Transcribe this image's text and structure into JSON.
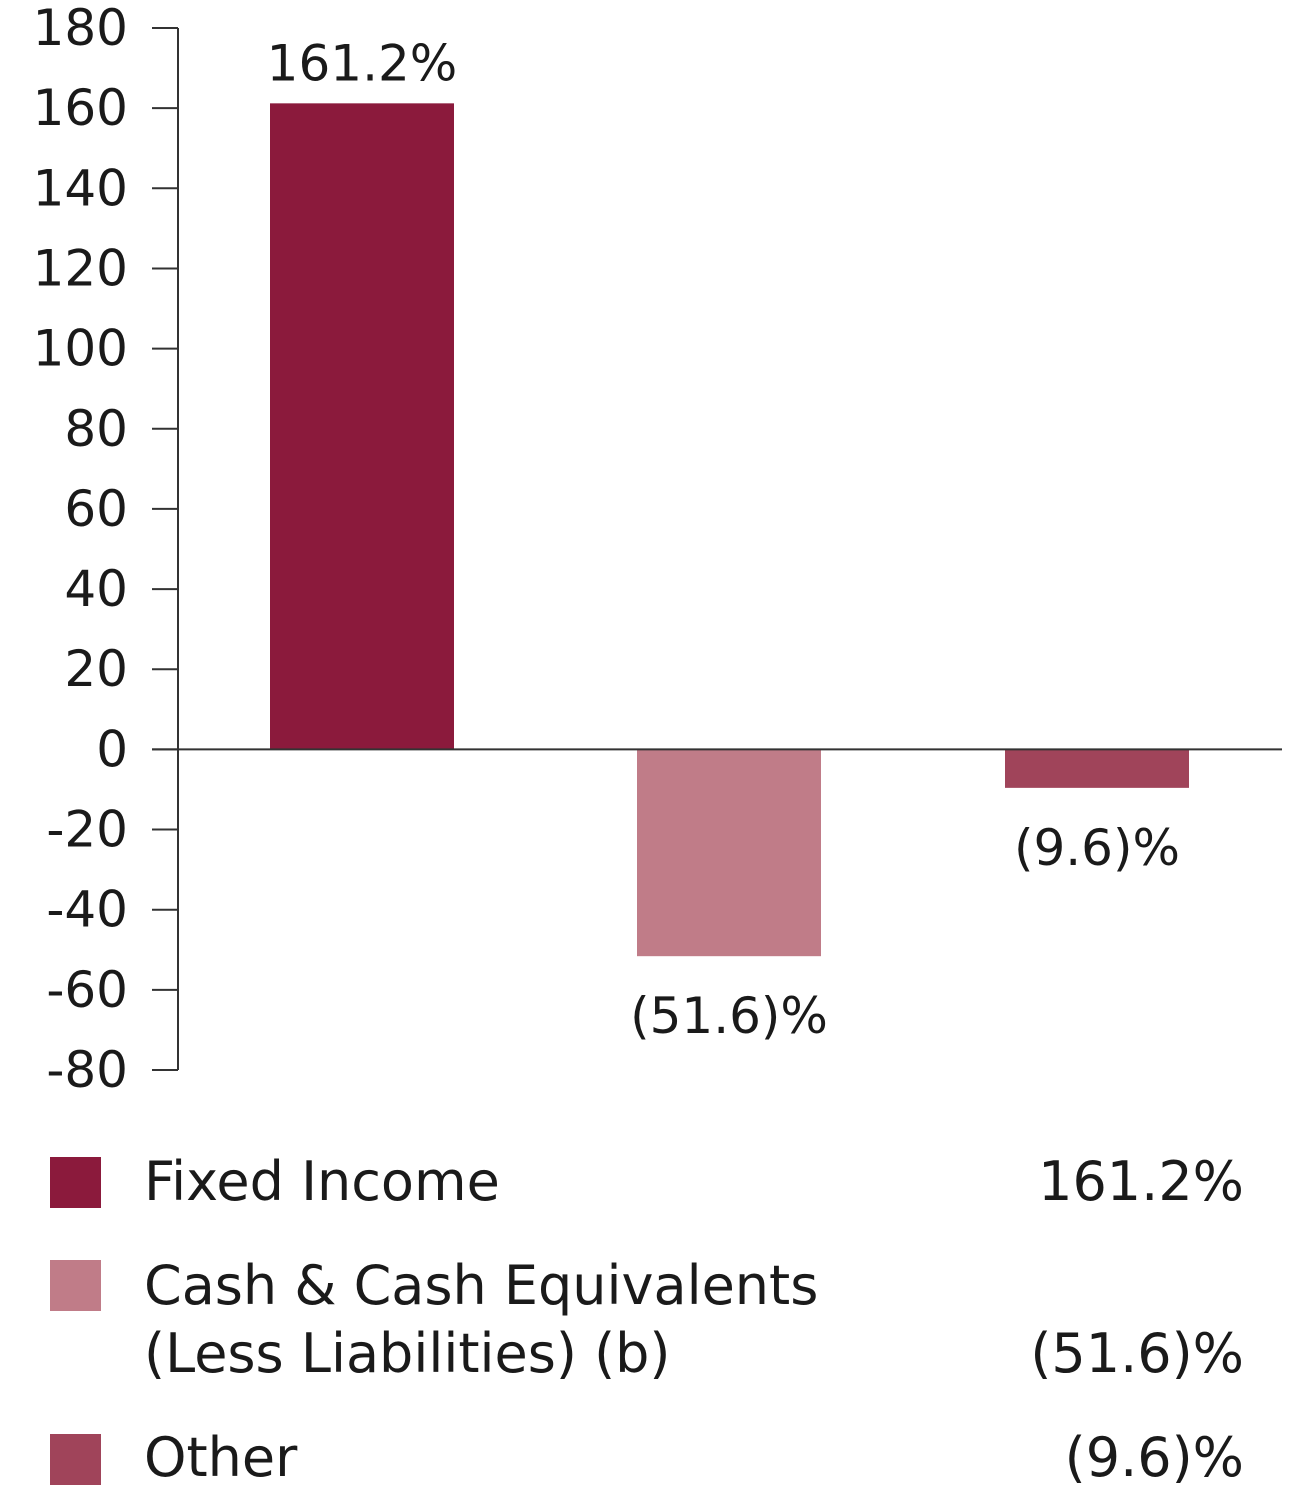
{
  "chart_data": {
    "type": "bar",
    "categories": [
      "Fixed Income",
      "Cash & Cash Equivalents (Less Liabilities) (b)",
      "Other"
    ],
    "values": [
      161.2,
      -51.6,
      -9.6
    ],
    "data_labels": [
      "161.2%",
      "(51.6)%",
      "(9.6)%"
    ],
    "colors": [
      "#8B1A3C",
      "#C07C88",
      "#A0445A"
    ],
    "ylim": [
      -80,
      180
    ],
    "yticks": [
      180,
      160,
      140,
      120,
      100,
      80,
      60,
      40,
      20,
      0,
      -20,
      -40,
      -60,
      -80
    ],
    "title": "",
    "xlabel": "",
    "ylabel": ""
  },
  "legend": {
    "items": [
      {
        "label_lines": [
          "Fixed Income"
        ],
        "value": "161.2%",
        "color": "#8B1A3C"
      },
      {
        "label_lines": [
          "Cash & Cash Equivalents",
          "(Less Liabilities) (b)"
        ],
        "value": "(51.6)%",
        "color": "#C07C88"
      },
      {
        "label_lines": [
          "Other"
        ],
        "value": "(9.6)%",
        "color": "#A0445A"
      }
    ]
  }
}
